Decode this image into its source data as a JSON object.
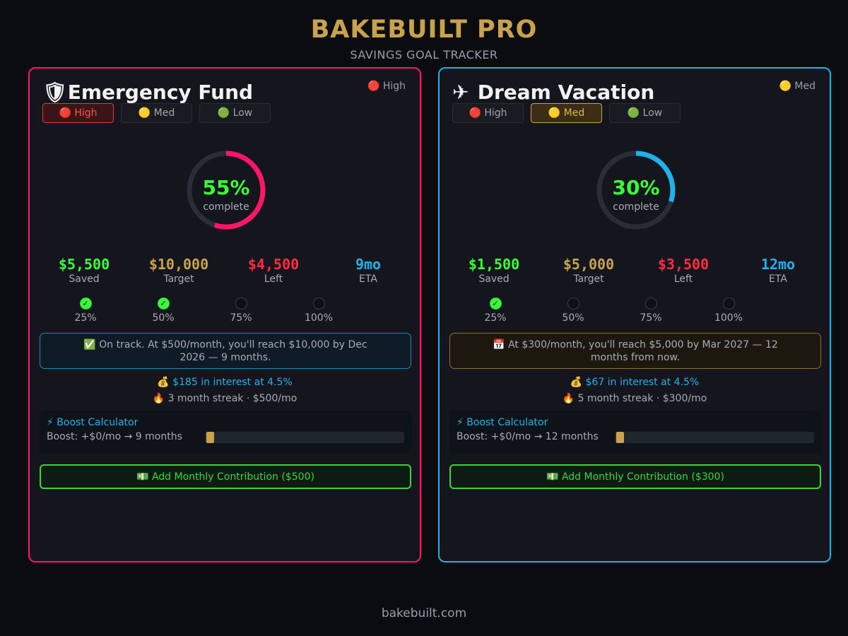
{
  "app": {
    "title": "BAKEBUILT PRO",
    "subtitle": "SAVINGS GOAL TRACKER",
    "footer": "bakebuilt.com"
  },
  "colors": {
    "gold": "#c9a24e",
    "green": "#39ff3a",
    "red": "#ff2b3f",
    "blue": "#1fb1e8",
    "pink": "#ff1666"
  },
  "cards": [
    {
      "accent": "#ff1666",
      "emoji": "🛡",
      "title": "Emergency Fund",
      "badge": "🔴 High",
      "priority": [
        "🔴 High",
        "🟡 Med",
        "🟢 Low"
      ],
      "active_priority": "high",
      "progress": 0.55,
      "percent_text": "55%",
      "complete_label": "complete",
      "stats": [
        {
          "value": "$5,500",
          "label": "Saved",
          "color": "#39ff3a"
        },
        {
          "value": "$10,000",
          "label": "Target",
          "color": "#c9a24e"
        },
        {
          "value": "$4,500",
          "label": "Left",
          "color": "#ff2b3f"
        },
        {
          "value": "9mo",
          "label": "ETA",
          "color": "#1fb1e8"
        }
      ],
      "milestones": [
        {
          "label": "25%",
          "done": true
        },
        {
          "label": "50%",
          "done": true
        },
        {
          "label": "75%",
          "done": false
        },
        {
          "label": "100%",
          "done": false
        }
      ],
      "message_style": "ontrack",
      "message": "✅ On track. At $500/month, you'll reach $10,000 by Dec 2026 — 9 months.",
      "interest": "💰 $185 in interest at 4.5%",
      "streak": "🔥 3 month streak · $500/mo",
      "boost_title": "⚡ Boost Calculator",
      "boost_text": "Boost: +$0/mo → 9 months",
      "boost_level": 0,
      "add_label": "💵 Add Monthly Contribution ($500)"
    },
    {
      "accent": "#1fb1e8",
      "emoji": "✈",
      "title": "Dream Vacation",
      "badge": "🟡 Med",
      "priority": [
        "🔴 High",
        "🟡 Med",
        "🟢 Low"
      ],
      "active_priority": "med",
      "progress": 0.3,
      "percent_text": "30%",
      "complete_label": "complete",
      "stats": [
        {
          "value": "$1,500",
          "label": "Saved",
          "color": "#39ff3a"
        },
        {
          "value": "$5,000",
          "label": "Target",
          "color": "#c9a24e"
        },
        {
          "value": "$3,500",
          "label": "Left",
          "color": "#ff2b3f"
        },
        {
          "value": "12mo",
          "label": "ETA",
          "color": "#1fb1e8"
        }
      ],
      "milestones": [
        {
          "label": "25%",
          "done": true
        },
        {
          "label": "50%",
          "done": false
        },
        {
          "label": "75%",
          "done": false
        },
        {
          "label": "100%",
          "done": false
        }
      ],
      "message_style": "warn",
      "message": "📅 At $300/month, you'll reach $5,000 by Mar 2027 — 12 months from now.",
      "interest": "💰 $67 in interest at 4.5%",
      "streak": "🔥 5 month streak · $300/mo",
      "boost_title": "⚡ Boost Calculator",
      "boost_text": "Boost: +$0/mo → 12 months",
      "boost_level": 0,
      "add_label": "💵 Add Monthly Contribution ($300)"
    }
  ]
}
